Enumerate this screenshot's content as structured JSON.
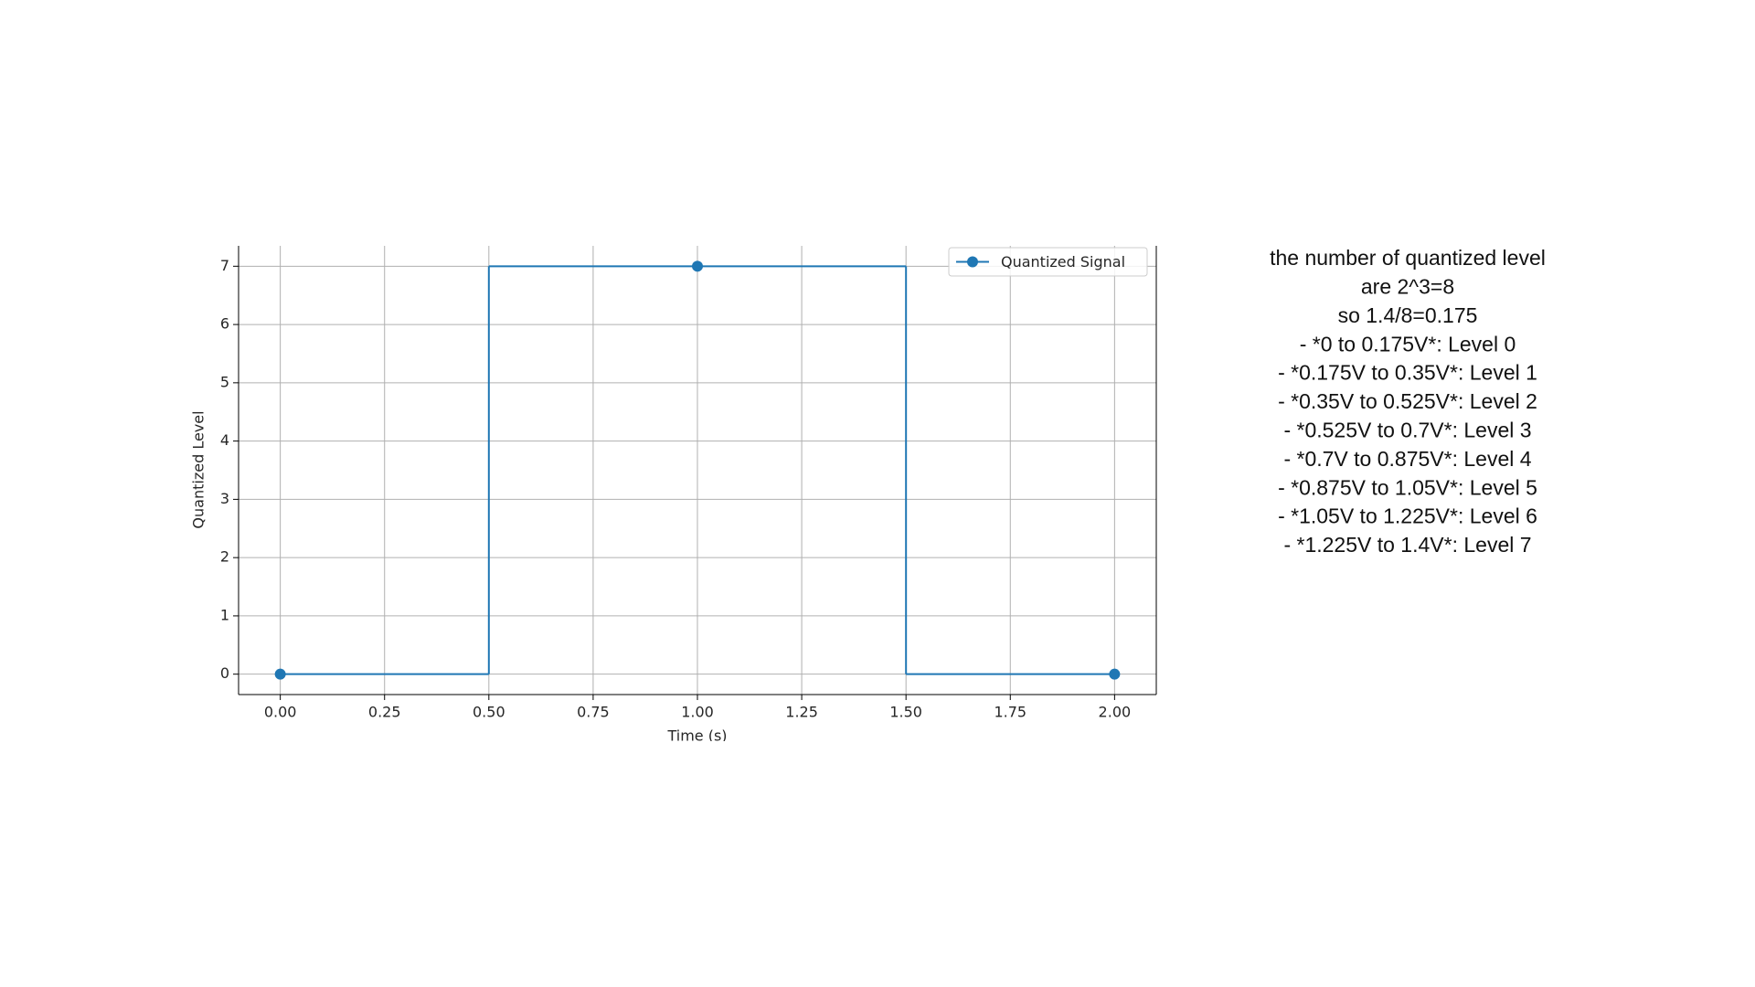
{
  "chart_data": {
    "type": "step",
    "step": "mid",
    "x_label": "Time (s)",
    "y_label": "Quantized Level",
    "x": [
      0,
      1,
      2
    ],
    "series": [
      {
        "name": "Quantized Signal",
        "color": "#1f77b4",
        "values": [
          0,
          7,
          0
        ]
      }
    ],
    "xlim": [
      -0.1,
      2.1
    ],
    "ylim": [
      -0.35,
      7.35
    ],
    "xticks": [
      {
        "value": 0,
        "label": "0.00"
      },
      {
        "value": 0.25,
        "label": "0.25"
      },
      {
        "value": 0.5,
        "label": "0.50"
      },
      {
        "value": 0.75,
        "label": "0.75"
      },
      {
        "value": 1,
        "label": "1.00"
      },
      {
        "value": 1.25,
        "label": "1.25"
      },
      {
        "value": 1.5,
        "label": "1.50"
      },
      {
        "value": 1.75,
        "label": "1.75"
      },
      {
        "value": 2,
        "label": "2.00"
      }
    ],
    "yticks": [
      0,
      1,
      2,
      3,
      4,
      5,
      6,
      7
    ],
    "grid": true,
    "legend": "upper right",
    "annotations": [
      "the number of quantized level",
      "are 2^3=8",
      "so 1.4/8=0.175",
      "- *0 to 0.175V*: Level 0",
      "- *0.175V to 0.35V*: Level 1",
      "- *0.35V to 0.525V*: Level 2",
      "- *0.525V to 0.7V*: Level 3",
      "- *0.7V to 0.875V*: Level 4",
      "- *0.875V to 1.05V*: Level 5",
      "- *1.05V to 1.225V*: Level 6",
      "- *1.225V to 1.4V*: Level 7"
    ]
  }
}
